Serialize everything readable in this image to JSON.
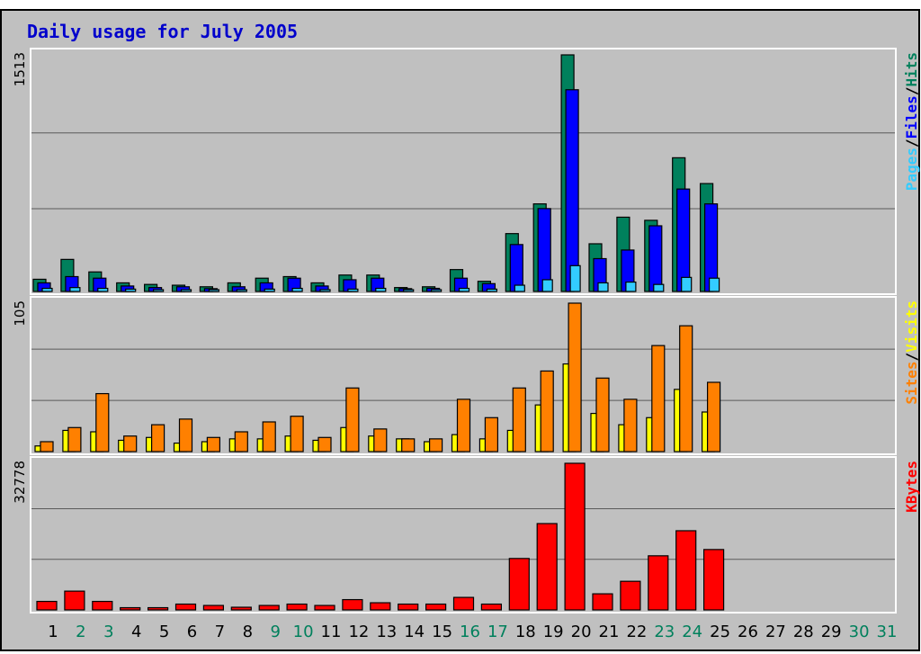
{
  "chart_data": {
    "type": "bar",
    "title": "Daily usage for July 2005",
    "categories": [
      "1",
      "2",
      "3",
      "4",
      "5",
      "6",
      "7",
      "8",
      "9",
      "10",
      "11",
      "12",
      "13",
      "14",
      "15",
      "16",
      "17",
      "18",
      "19",
      "20",
      "21",
      "22",
      "23",
      "24",
      "25",
      "26",
      "27",
      "28",
      "29",
      "30",
      "31"
    ],
    "weekend_days": [
      "2",
      "3",
      "9",
      "10",
      "16",
      "17",
      "23",
      "24",
      "30",
      "31"
    ],
    "panels": [
      {
        "name": "hits-files-pages",
        "max_label": "1513",
        "ylim": [
          0,
          1513
        ],
        "legend": [
          {
            "label": "Pages",
            "color": "#33ccff"
          },
          {
            "label": "Files",
            "color": "#0000ff"
          },
          {
            "label": "Hits",
            "color": "#00805c"
          }
        ],
        "series": [
          {
            "name": "Hits",
            "color": "#00805c",
            "values": [
              78,
              205,
              125,
              55,
              45,
              40,
              30,
              55,
              85,
              95,
              55,
              105,
              105,
              25,
              30,
              140,
              65,
              370,
              560,
              1513,
              305,
              475,
              455,
              855,
              690,
              0,
              0,
              0,
              0,
              0,
              0
            ]
          },
          {
            "name": "Files",
            "color": "#0000ff",
            "values": [
              55,
              95,
              85,
              35,
              25,
              30,
              18,
              30,
              55,
              85,
              35,
              75,
              85,
              18,
              20,
              85,
              50,
              300,
              530,
              1290,
              210,
              265,
              420,
              655,
              560,
              0,
              0,
              0,
              0,
              0,
              0
            ]
          },
          {
            "name": "Pages",
            "color": "#33ccff",
            "values": [
              20,
              25,
              20,
              15,
              10,
              10,
              8,
              10,
              15,
              20,
              12,
              15,
              20,
              8,
              8,
              20,
              15,
              40,
              75,
              165,
              55,
              60,
              45,
              90,
              85,
              0,
              0,
              0,
              0,
              0,
              0
            ]
          }
        ]
      },
      {
        "name": "visits-sites",
        "max_label": "105",
        "ylim": [
          0,
          105
        ],
        "legend": [
          {
            "label": "Sites",
            "color": "#ff8000"
          },
          {
            "label": "Visits",
            "color": "#ffff00"
          }
        ],
        "series": [
          {
            "name": "Visits",
            "color": "#ffff00",
            "values": [
              4,
              15,
              14,
              8,
              10,
              6,
              7,
              9,
              9,
              11,
              8,
              17,
              11,
              9,
              7,
              12,
              9,
              15,
              33,
              62,
              27,
              19,
              24,
              44,
              28,
              0,
              0,
              0,
              0,
              0,
              0
            ]
          },
          {
            "name": "Sites",
            "color": "#ff8000",
            "values": [
              7,
              17,
              41,
              11,
              19,
              23,
              10,
              14,
              21,
              25,
              10,
              45,
              16,
              9,
              9,
              37,
              24,
              45,
              57,
              105,
              52,
              37,
              75,
              89,
              49,
              0,
              0,
              0,
              0,
              0,
              0
            ]
          }
        ]
      },
      {
        "name": "kbytes",
        "max_label": "32778",
        "ylim": [
          0,
          32778
        ],
        "legend": [
          {
            "label": "KBytes",
            "color": "#ff0000"
          }
        ],
        "series": [
          {
            "name": "KBytes",
            "color": "#ff0000",
            "values": [
              1900,
              4200,
              1900,
              500,
              500,
              1300,
              1000,
              600,
              1000,
              1300,
              1000,
              2300,
              1600,
              1300,
              1300,
              2800,
              1300,
              11500,
              19300,
              32778,
              3600,
              6400,
              12100,
              17700,
              13500,
              0,
              0,
              0,
              0,
              0,
              0
            ]
          }
        ]
      }
    ]
  }
}
